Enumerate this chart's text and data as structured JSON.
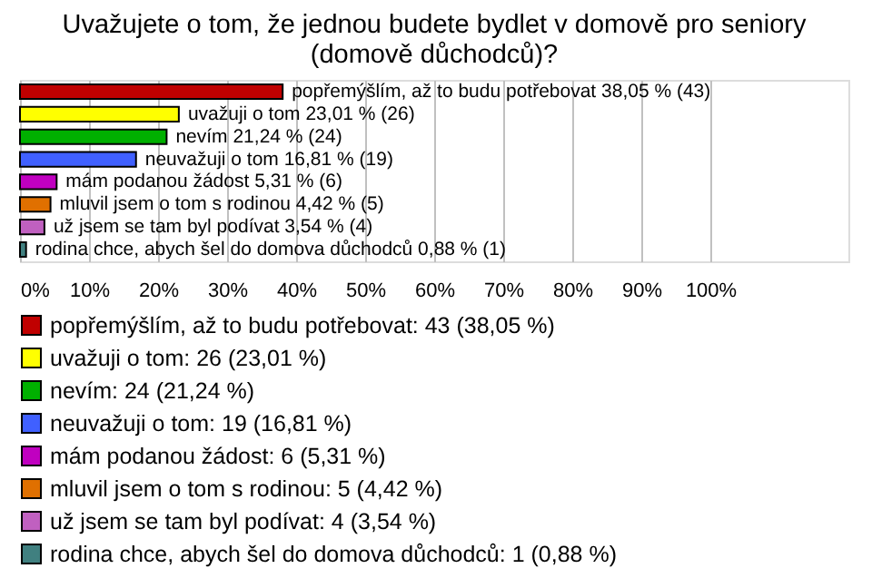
{
  "chart_data": {
    "type": "bar",
    "orientation": "horizontal",
    "title": "Uvažujete o tom, že jednou budete bydlet v domově pro seniory\n(domově důchodců)?",
    "categories": [
      null,
      null,
      null,
      null,
      null,
      null,
      null,
      null
    ],
    "series": [
      {
        "name": "popřemýšlím, až to budu potřebovat: 43 (38,05 %)",
        "color": "#c00000",
        "values": [
          38.05,
          null,
          null,
          null,
          null,
          null,
          null,
          null
        ],
        "value_labels": [
          "popřemýšlím, až to budu potřebovat 38,05 % (43)",
          null,
          null,
          null,
          null,
          null,
          null,
          null
        ]
      },
      {
        "name": "uvažuji o tom: 26 (23,01 %)",
        "color": "#ffff00",
        "values": [
          null,
          23.01,
          null,
          null,
          null,
          null,
          null,
          null
        ],
        "value_labels": [
          null,
          "uvažuji o tom 23,01 % (26)",
          null,
          null,
          null,
          null,
          null,
          null
        ]
      },
      {
        "name": "nevím: 24 (21,24 %)",
        "color": "#00b000",
        "values": [
          null,
          null,
          21.24,
          null,
          null,
          null,
          null,
          null
        ],
        "value_labels": [
          null,
          null,
          "nevím 21,24 % (24)",
          null,
          null,
          null,
          null,
          null
        ]
      },
      {
        "name": "neuvažuji o tom: 19 (16,81 %)",
        "color": "#4060ff",
        "values": [
          null,
          null,
          null,
          16.81,
          null,
          null,
          null,
          null
        ],
        "value_labels": [
          null,
          null,
          null,
          "neuvažuji o tom 16,81 % (19)",
          null,
          null,
          null,
          null
        ]
      },
      {
        "name": "mám podanou žádost: 6 (5,31 %)",
        "color": "#c000c0",
        "values": [
          null,
          null,
          null,
          null,
          5.31,
          null,
          null,
          null
        ],
        "value_labels": [
          null,
          null,
          null,
          null,
          "mám podanou žádost 5,31 % (6)",
          null,
          null,
          null
        ]
      },
      {
        "name": "mluvil jsem o tom s rodinou: 5 (4,42 %)",
        "color": "#e07000",
        "values": [
          null,
          null,
          null,
          null,
          null,
          4.42,
          null,
          null
        ],
        "value_labels": [
          null,
          null,
          null,
          null,
          null,
          "mluvil jsem o tom s rodinou 4,42 % (5)",
          null,
          null
        ]
      },
      {
        "name": "už jsem se tam byl podívat: 4 (3,54 %)",
        "color": "#c060c0",
        "values": [
          null,
          null,
          null,
          null,
          null,
          null,
          3.54,
          null
        ],
        "value_labels": [
          null,
          null,
          null,
          null,
          null,
          null,
          "už jsem se tam byl podívat 3,54 % (4)",
          null
        ]
      },
      {
        "name": "rodina chce, abych šel do domova důchodců: 1 (0,88 %)",
        "color": "#408080",
        "values": [
          null,
          null,
          null,
          null,
          null,
          null,
          null,
          0.88
        ],
        "value_labels": [
          null,
          null,
          null,
          null,
          null,
          null,
          null,
          "rodina chce, abych šel do domova důchodců 0,88 % (1)"
        ]
      }
    ],
    "xlim": [
      0,
      120
    ],
    "xticks": [
      {
        "value": 0,
        "label": "0%"
      },
      {
        "value": 10,
        "label": "10%"
      },
      {
        "value": 20,
        "label": "20%"
      },
      {
        "value": 30,
        "label": "30%"
      },
      {
        "value": 40,
        "label": "40%"
      },
      {
        "value": 50,
        "label": "50%"
      },
      {
        "value": 60,
        "label": "60%"
      },
      {
        "value": 70,
        "label": "70%"
      },
      {
        "value": 80,
        "label": "80%"
      },
      {
        "value": 90,
        "label": "90%"
      },
      {
        "value": 100,
        "label": "100%"
      }
    ],
    "grid": "x",
    "legend": "bottom",
    "tick_labels": "x"
  }
}
